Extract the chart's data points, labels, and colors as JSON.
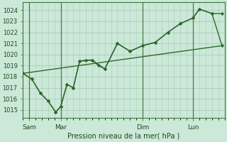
{
  "xlabel": "Pression niveau de la mer( hPa )",
  "bg_color": "#cce8d8",
  "grid_color": "#aaccb8",
  "line_color": "#2d6a2d",
  "marker_color": "#2d6a2d",
  "ylim": [
    1014.3,
    1024.7
  ],
  "yticks": [
    1015,
    1016,
    1017,
    1018,
    1019,
    1020,
    1021,
    1022,
    1023,
    1024
  ],
  "xlim": [
    0,
    16
  ],
  "xtick_positions": [
    0.5,
    3.0,
    9.5,
    13.5
  ],
  "xtick_labels": [
    "Sam",
    "Mar",
    "Dim",
    "Lun"
  ],
  "vline_positions": [
    0.5,
    3.0,
    9.5,
    13.5
  ],
  "trend_x": [
    0.0,
    15.8
  ],
  "trend_y": [
    1018.3,
    1020.8
  ],
  "line1_x": [
    0.0,
    0.7,
    1.4,
    2.0,
    2.6,
    3.0,
    3.5,
    4.0,
    4.5,
    5.0,
    5.5,
    6.0,
    6.5,
    7.5,
    8.5,
    9.5,
    10.5,
    11.5,
    12.5,
    13.5,
    14.0,
    15.0,
    15.8
  ],
  "line1_y": [
    1018.3,
    1017.8,
    1016.5,
    1015.8,
    1014.8,
    1015.3,
    1017.3,
    1017.0,
    1019.4,
    1019.5,
    1019.5,
    1019.0,
    1018.7,
    1021.0,
    1020.3,
    1020.8,
    1021.1,
    1022.0,
    1022.8,
    1023.3,
    1024.1,
    1023.7,
    1023.7
  ],
  "line2_x": [
    0.0,
    0.7,
    1.4,
    2.0,
    2.6,
    3.0,
    3.5,
    4.0,
    4.5,
    5.5,
    6.5,
    7.5,
    8.5,
    9.5,
    10.5,
    11.5,
    12.5,
    13.5,
    14.0,
    15.0,
    15.8
  ],
  "line2_y": [
    1018.3,
    1017.8,
    1016.5,
    1015.8,
    1014.8,
    1015.3,
    1017.3,
    1017.0,
    1019.4,
    1019.5,
    1018.7,
    1021.0,
    1020.3,
    1020.8,
    1021.1,
    1022.0,
    1022.8,
    1023.3,
    1024.1,
    1023.7,
    1020.8
  ]
}
